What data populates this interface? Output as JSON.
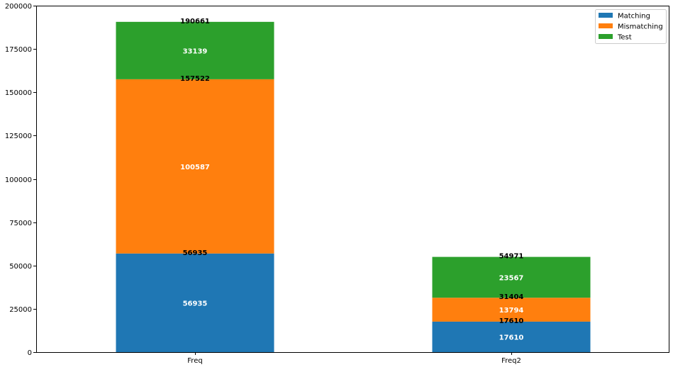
{
  "chart_data": {
    "type": "bar",
    "stacked": true,
    "categories": [
      "Freq",
      "Freq2"
    ],
    "series": [
      {
        "name": "Matching",
        "color": "#1f77b4",
        "values": [
          56935,
          17610
        ]
      },
      {
        "name": "Mismatching",
        "color": "#ff7f0e",
        "values": [
          100587,
          13794
        ]
      },
      {
        "name": "Test",
        "color": "#2ca02c",
        "values": [
          33139,
          23567
        ]
      }
    ],
    "segment_labels": [
      [
        "56935",
        "100587",
        "33139"
      ],
      [
        "17610",
        "13794",
        "23567"
      ]
    ],
    "cumulative_labels": [
      [
        "56935",
        "157522",
        "190661"
      ],
      [
        "17610",
        "31404",
        "54971"
      ]
    ],
    "ylim": [
      0,
      200000
    ],
    "yticks": [
      0,
      25000,
      50000,
      75000,
      100000,
      125000,
      150000,
      175000,
      200000
    ],
    "ytick_labels": [
      "0",
      "25000",
      "50000",
      "75000",
      "100000",
      "125000",
      "150000",
      "175000",
      "200000"
    ],
    "grid": false,
    "legend_position": "top-right",
    "title": "",
    "xlabel": "",
    "ylabel": ""
  }
}
